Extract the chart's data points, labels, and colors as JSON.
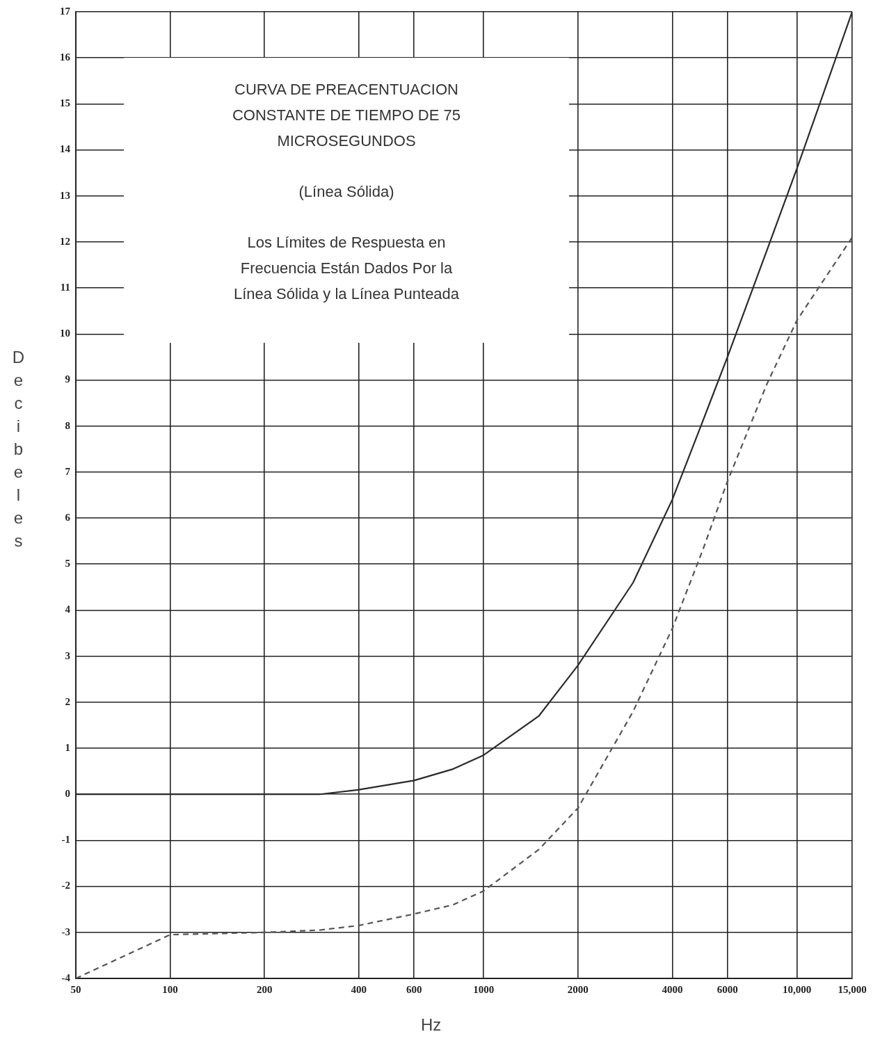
{
  "chart_data": {
    "type": "line",
    "title": "CURVA DE PREACENTUACION CONSTANTE DE TIEMPO DE 75 MICROSEGUNDOS",
    "subtitle": "(Línea Sólida)",
    "annotations": [
      "Los Límites de Respuesta en Frecuencia Están Dados Por la Línea Sólida y la Línea Punteada"
    ],
    "xlabel": "Hz",
    "ylabel": "Decibeles",
    "x": [
      50,
      100,
      200,
      300,
      400,
      600,
      800,
      1000,
      1500,
      2000,
      3000,
      4000,
      5000,
      6000,
      8000,
      10000,
      15000
    ],
    "series": [
      {
        "color": "#2a2a2a",
        "line_style": "solid",
        "values": [
          0,
          0,
          0,
          0,
          0.1,
          0.3,
          0.55,
          0.85,
          1.7,
          2.8,
          4.6,
          6.4,
          8.1,
          9.5,
          11.8,
          13.6,
          17
        ]
      },
      {
        "color": "#555555",
        "line_style": "dashed",
        "values": [
          -4,
          -3.05,
          -3.0,
          -2.95,
          -2.85,
          -2.6,
          -2.4,
          -2.1,
          -1.2,
          -0.3,
          1.8,
          3.6,
          5.3,
          6.8,
          8.9,
          10.3,
          12.1
        ]
      }
    ],
    "xlim": [
      50,
      15000
    ],
    "ylim": [
      -4,
      17
    ],
    "xticks": [
      50,
      100,
      200,
      400,
      600,
      1000,
      2000,
      4000,
      6000,
      {
        "value": 10000,
        "label": "10,000"
      },
      {
        "value": 15000,
        "label": "15,000"
      }
    ],
    "yticks": [
      -4,
      -3,
      -2,
      -1,
      0,
      1,
      2,
      3,
      4,
      5,
      6,
      7,
      8,
      9,
      10,
      11,
      12,
      13,
      14,
      15,
      16,
      17
    ],
    "log": "x",
    "grid": true,
    "marker": "none"
  }
}
